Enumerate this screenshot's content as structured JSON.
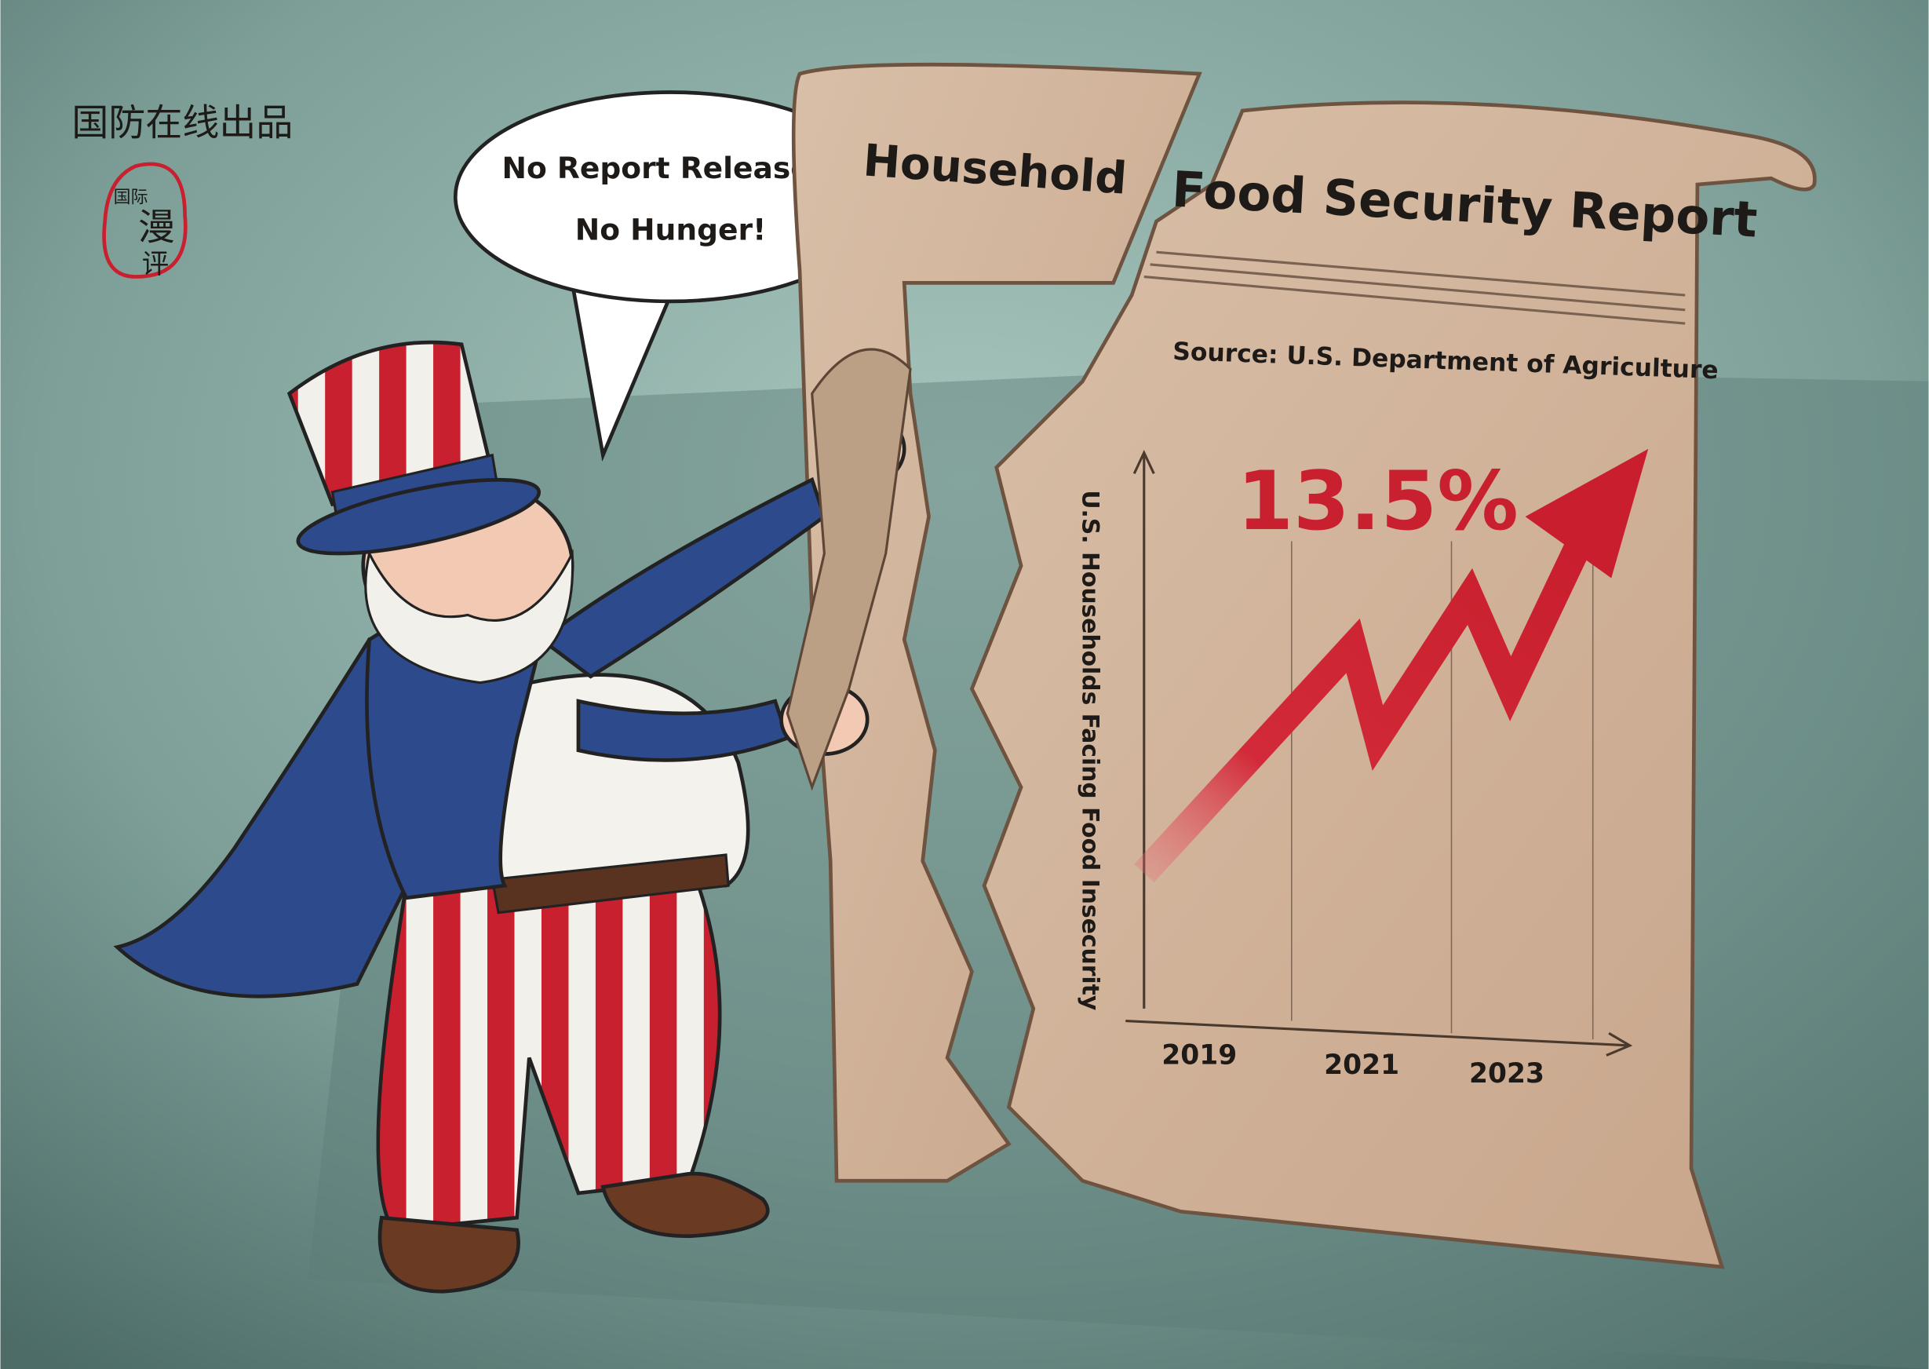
{
  "watermark": "国防在线出品",
  "seal": [
    "国际",
    "漫",
    "评"
  ],
  "speech_bubble": {
    "lines": [
      "No Report Releases,",
      "No Hunger!"
    ]
  },
  "report": {
    "torn_title": "Household",
    "title": "Food Security Report",
    "source": "Source: U.S. Department of Agriculture",
    "highlight": "13.5%",
    "y_axis_label": "U.S. Households Facing Food Insecurity",
    "x_labels": [
      "2019",
      "2021",
      "2023"
    ]
  }
}
